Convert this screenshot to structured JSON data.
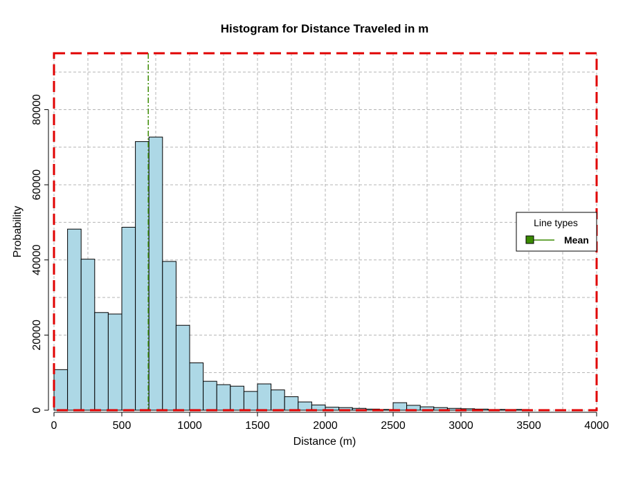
{
  "chart_data": {
    "type": "bar",
    "title": "Histogram for Distance Traveled in m",
    "xlabel": "Distance (m)",
    "ylabel": "Probability",
    "xlim": [
      0,
      4000
    ],
    "ylim": [
      0,
      95000
    ],
    "bin_width": 100,
    "bin_starts": [
      0,
      100,
      200,
      300,
      400,
      500,
      600,
      700,
      800,
      900,
      1000,
      1100,
      1200,
      1300,
      1400,
      1500,
      1600,
      1700,
      1800,
      1900,
      2000,
      2100,
      2200,
      2300,
      2400,
      2500,
      2600,
      2700,
      2800,
      2900,
      3000,
      3100,
      3200,
      3300,
      3400
    ],
    "values": [
      10800,
      48200,
      40200,
      26000,
      25600,
      48700,
      71500,
      72700,
      39600,
      22600,
      12600,
      7700,
      6800,
      6400,
      5000,
      7000,
      5400,
      3600,
      2200,
      1400,
      800,
      700,
      500,
      300,
      200,
      2000,
      1300,
      900,
      700,
      500,
      400,
      300,
      200,
      200,
      200
    ],
    "x_ticks": [
      0,
      500,
      1000,
      1500,
      2000,
      2500,
      3000,
      3500,
      4000
    ],
    "x_tick_labels": [
      "0",
      "500",
      "1000",
      "1500",
      "2000",
      "2500",
      "3000",
      "3500",
      "4000"
    ],
    "y_ticks": [
      0,
      20000,
      40000,
      60000,
      80000
    ],
    "y_tick_labels": [
      "0",
      "20000",
      "40000",
      "60000",
      "80000"
    ],
    "grid": true,
    "mean": 695,
    "legend": {
      "title": "Line types",
      "placement": "right",
      "entries": [
        {
          "label": "Mean",
          "color": "#3a8a00"
        }
      ]
    },
    "colors": {
      "bar_fill": "#add8e6",
      "bar_stroke": "#000000",
      "mean_line": "#3a8a00",
      "border": "#e00000",
      "grid": "#b3b3b3"
    }
  }
}
